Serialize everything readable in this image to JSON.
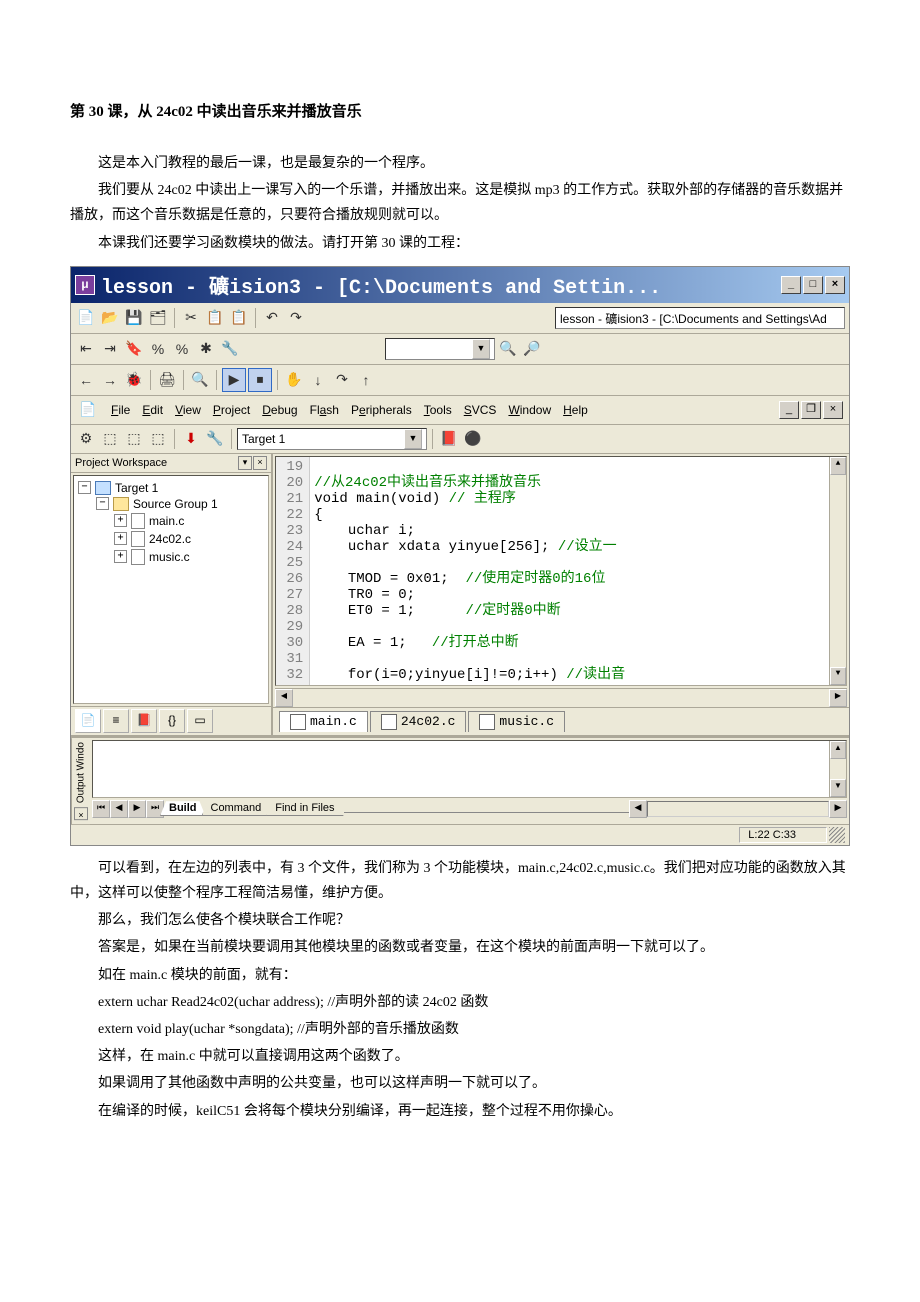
{
  "doc": {
    "heading": "第 30 课，从 24c02 中读出音乐来并播放音乐",
    "p1": "这是本入门教程的最后一课，也是最复杂的一个程序。",
    "p2": "我们要从 24c02 中读出上一课写入的一个乐谱，并播放出来。这是模拟 mp3 的工作方式。获取外部的存储器的音乐数据并播放，而这个音乐数据是任意的，只要符合播放规则就可以。",
    "p3": "本课我们还要学习函数模块的做法。请打开第 30 课的工程：",
    "p4": "可以看到，在左边的列表中，有 3 个文件，我们称为 3 个功能模块，main.c,24c02.c,music.c。我们把对应功能的函数放入其中，这样可以使整个程序工程简洁易懂，维护方便。",
    "p5": "那么，我们怎么使各个模块联合工作呢？",
    "p6": "答案是，如果在当前模块要调用其他模块里的函数或者变量，在这个模块的前面声明一下就可以了。",
    "p7": "如在 main.c 模块的前面，就有：",
    "p8": "extern uchar Read24c02(uchar address); //声明外部的读 24c02 函数",
    "p9": "extern void play(uchar *songdata);     //声明外部的音乐播放函数",
    "p10": "这样，在 main.c 中就可以直接调用这两个函数了。",
    "p11": "如果调用了其他函数中声明的公共变量，也可以这样声明一下就可以了。",
    "p12": "在编译的时候，keilC51 会将每个模块分别编译，再一起连接，整个过程不用你操心。"
  },
  "ide": {
    "title": "lesson  - 礦ision3 - [C:\\Documents and Settin...",
    "bigTitleField": "lesson  - 礦ision3 - [C:\\Documents and Settings\\Ad",
    "menus": {
      "file": "File",
      "edit": "Edit",
      "view": "View",
      "project": "Project",
      "debug": "Debug",
      "flash": "Flash",
      "peripherals": "Peripherals",
      "tools": "Tools",
      "svcs": "SVCS",
      "window": "Window",
      "help": "Help"
    },
    "targetCombo": "Target 1",
    "workspace": {
      "title": "Project Workspace",
      "target": "Target 1",
      "group": "Source Group 1",
      "files": [
        "main.c",
        "24c02.c",
        "music.c"
      ]
    },
    "code": {
      "startLine": 19,
      "lines": [
        {
          "n": 19,
          "t": ""
        },
        {
          "n": 20,
          "t": "//从24c02中读出音乐来并播放音乐",
          "cls": "c-comment"
        },
        {
          "n": 21,
          "t": "void main(void) // 主程序",
          "mix": [
            [
              "",
              "void main(void) "
            ],
            [
              "c-comment",
              "// 主程序"
            ]
          ]
        },
        {
          "n": 22,
          "t": "{"
        },
        {
          "n": 23,
          "t": "    uchar i;"
        },
        {
          "n": 24,
          "t": "    uchar xdata yinyue[256]; //设立一",
          "mix": [
            [
              "",
              "    uchar xdata yinyue[256]; "
            ],
            [
              "c-comment",
              "//设立一"
            ]
          ]
        },
        {
          "n": 25,
          "t": ""
        },
        {
          "n": 26,
          "t": "    TMOD = 0x01;  //使用定时器0的16位",
          "mix": [
            [
              "",
              "    TMOD = 0x01;  "
            ],
            [
              "c-comment",
              "//使用定时器0的16位"
            ]
          ]
        },
        {
          "n": 27,
          "t": "    TR0 = 0;"
        },
        {
          "n": 28,
          "t": "    ET0 = 1;      //定时器0中断",
          "mix": [
            [
              "",
              "    ET0 = 1;      "
            ],
            [
              "c-comment",
              "//定时器0中断"
            ]
          ]
        },
        {
          "n": 29,
          "t": ""
        },
        {
          "n": 30,
          "t": "    EA = 1;   //打开总中断",
          "mix": [
            [
              "",
              "    EA = 1;   "
            ],
            [
              "c-comment",
              "//打开总中断"
            ]
          ]
        },
        {
          "n": 31,
          "t": ""
        },
        {
          "n": 32,
          "t": "    for(i=0;yinyue[i]!=0;i++) //读出音",
          "mix": [
            [
              "",
              "    for(i=0;yinyue[i]!=0;i++) "
            ],
            [
              "c-comment",
              "//读出音"
            ]
          ]
        }
      ]
    },
    "editorTabs": [
      "main.c",
      "24c02.c",
      "music.c"
    ],
    "activeEditorTab": 0,
    "outputLabel": "Output Windo",
    "outputTabs": [
      "Build",
      "Command",
      "Find in Files"
    ],
    "activeOutputTab": 0,
    "status": "L:22 C:33"
  },
  "colors": {
    "titlebarStart": "#0a246a",
    "titlebarEnd": "#a6caf0",
    "panel": "#ece9d8",
    "comment": "#008000"
  }
}
